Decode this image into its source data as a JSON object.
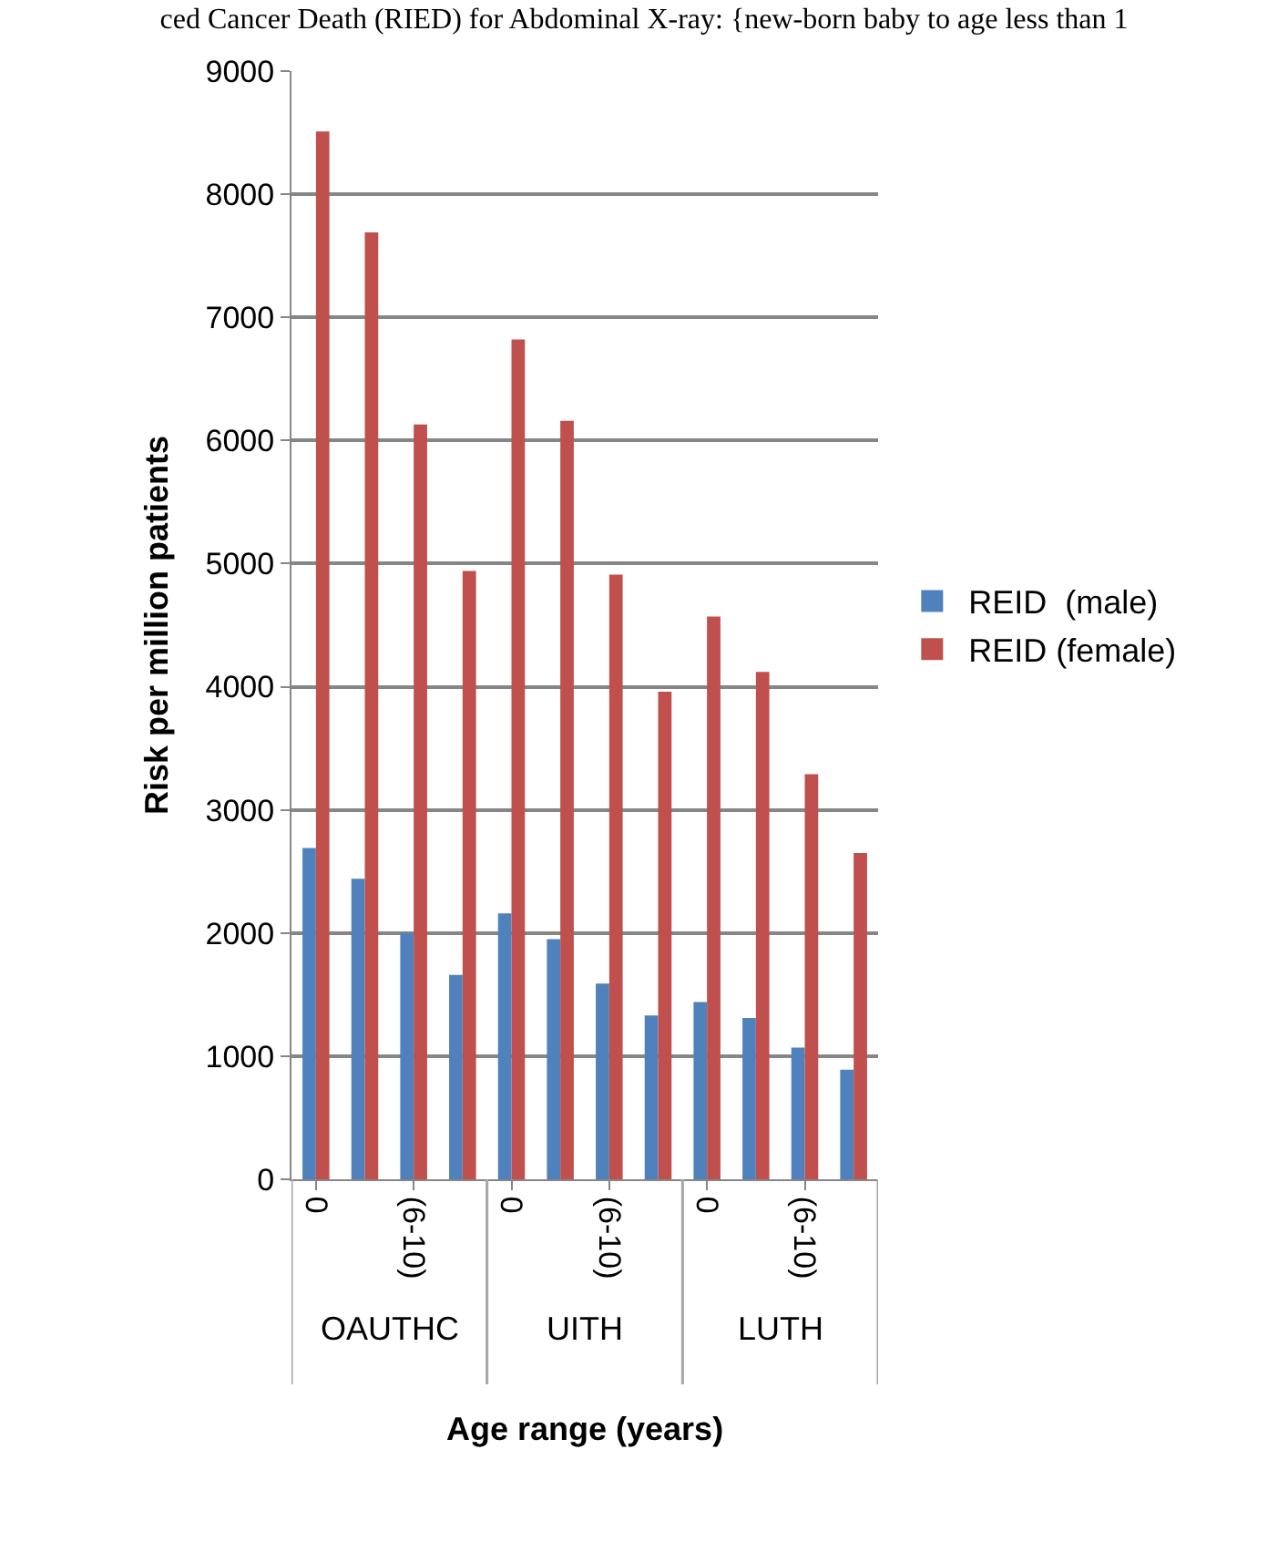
{
  "chart_data": {
    "type": "bar",
    "title": "ced Cancer Death (RIED) for Abdominal X-ray: {new-born baby to age less than 1",
    "xlabel": "Age range (years)",
    "ylabel": "Risk per million patients",
    "categories": [
      "0",
      null,
      "(6-10)",
      null,
      "0",
      null,
      "(6-10)",
      null,
      "0",
      null,
      "(6-10)",
      null
    ],
    "series": [
      {
        "name": "REID  (male)",
        "color": "#4f81bd",
        "values": [
          2690,
          2440,
          2000,
          1660,
          2160,
          1950,
          1590,
          1330,
          1440,
          1310,
          1070,
          890
        ]
      },
      {
        "name": "REID (female)",
        "color": "#c0504d",
        "values": [
          8510,
          7690,
          6130,
          4940,
          6820,
          6160,
          4910,
          3960,
          4570,
          4120,
          3290,
          2650
        ]
      }
    ],
    "annotations": [
      "OAUTHC",
      "UITH",
      "LUTH"
    ],
    "ylim": [
      0,
      9000
    ],
    "yticks": [
      0,
      1000,
      2000,
      3000,
      4000,
      5000,
      6000,
      7000,
      8000,
      9000
    ],
    "grid": "y",
    "legend": "right"
  }
}
